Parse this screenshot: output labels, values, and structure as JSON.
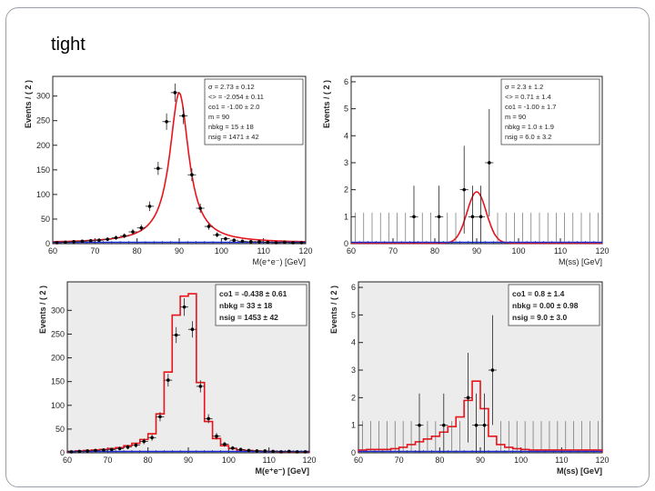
{
  "slide": {
    "title": "tight"
  },
  "chart_data": [
    {
      "type": "scatter",
      "panel": "top-left",
      "xlabel": "M(e⁺e⁻) [GeV]",
      "ylabel": "Events / ( 2 )",
      "xlim": [
        60,
        120
      ],
      "ylim": [
        0,
        340
      ],
      "xticks": [
        "60",
        "70",
        "80",
        "90",
        "100",
        "110",
        "120"
      ],
      "yticks": [
        "0",
        "50",
        "100",
        "150",
        "200",
        "250",
        "300"
      ],
      "yticks_v": [
        0,
        50,
        100,
        150,
        200,
        250,
        300
      ],
      "fit": {
        "type": "breit-wigner",
        "mean": 90,
        "gamma": 2.73,
        "peak": 305,
        "bkg": 1.5
      },
      "series": [
        {
          "name": "data",
          "x": [
            61,
            63,
            65,
            67,
            69,
            71,
            73,
            75,
            77,
            79,
            81,
            83,
            85,
            87,
            89,
            91,
            93,
            95,
            97,
            99,
            101,
            103,
            105,
            107,
            109,
            111,
            113,
            115,
            117,
            119
          ],
          "values": [
            2,
            3,
            4,
            5,
            6,
            7,
            9,
            12,
            16,
            24,
            32,
            76,
            153,
            248,
            307,
            260,
            140,
            72,
            35,
            18,
            10,
            7,
            5,
            4,
            4,
            3,
            2,
            3,
            2,
            2
          ]
        }
      ],
      "stats": [
        "σ = 2.73 ± 0.12",
        "<> = -2.054 ± 0.11",
        "co1 = -1.00 ± 2.0",
        "m = 90",
        "nbkg = 15 ± 18",
        "nsig = 1471 ± 42"
      ],
      "style": "curve"
    },
    {
      "type": "scatter",
      "panel": "top-right",
      "xlabel": "M(ss) [GeV]",
      "ylabel": "Events / ( 2 )",
      "xlim": [
        60,
        120
      ],
      "ylim": [
        0,
        6.2
      ],
      "xticks": [
        "60",
        "70",
        "80",
        "90",
        "100",
        "110",
        "120"
      ],
      "yticks": [
        "0",
        "1",
        "2",
        "3",
        "4",
        "5",
        "6"
      ],
      "yticks_v": [
        0,
        1,
        2,
        3,
        4,
        5,
        6
      ],
      "fit": {
        "type": "gauss",
        "mean": 90,
        "sigma": 2.3,
        "peak": 1.9,
        "bkg": 0.02
      },
      "series": [
        {
          "name": "data",
          "x": [
            75,
            81,
            87,
            89,
            91,
            93
          ],
          "values": [
            1,
            1,
            2,
            1,
            1,
            3
          ]
        }
      ],
      "stats": [
        "σ = 2.3 ± 1.2",
        "<> = 0.71 ± 1.4",
        "co1 = -1.00 ± 1.7",
        "m = 90",
        "nbkg = 1.0 ± 1.9",
        "nsig = 6.0 ± 3.2"
      ],
      "style": "curve"
    },
    {
      "type": "bar",
      "panel": "bottom-left",
      "xlabel": "M(e⁺e⁻) [GeV]",
      "ylabel": "Events / ( 2 )",
      "xlim": [
        60,
        120
      ],
      "ylim": [
        0,
        360
      ],
      "xticks": [
        "60",
        "70",
        "80",
        "90",
        "100",
        "110",
        "120"
      ],
      "yticks": [
        "0",
        "50",
        "100",
        "150",
        "200",
        "250",
        "300"
      ],
      "yticks_v": [
        0,
        50,
        100,
        150,
        200,
        250,
        300
      ],
      "bins_x": [
        61,
        63,
        65,
        67,
        69,
        71,
        73,
        75,
        77,
        79,
        81,
        83,
        85,
        87,
        89,
        91,
        93,
        95,
        97,
        99,
        101,
        103,
        105,
        107,
        109,
        111,
        113,
        115,
        117,
        119
      ],
      "hist": [
        3,
        4,
        5,
        6,
        7,
        9,
        11,
        15,
        20,
        28,
        40,
        82,
        170,
        290,
        330,
        335,
        148,
        66,
        30,
        15,
        9,
        6,
        5,
        4,
        3,
        3,
        2,
        2,
        2,
        2
      ],
      "series": [
        {
          "name": "data",
          "x": [
            61,
            63,
            65,
            67,
            69,
            71,
            73,
            75,
            77,
            79,
            81,
            83,
            85,
            87,
            89,
            91,
            93,
            95,
            97,
            99,
            101,
            103,
            105,
            107,
            109,
            111,
            113,
            115,
            117,
            119
          ],
          "values": [
            2,
            3,
            4,
            5,
            6,
            7,
            9,
            12,
            16,
            24,
            32,
            76,
            153,
            248,
            307,
            260,
            140,
            72,
            35,
            18,
            10,
            7,
            5,
            4,
            4,
            3,
            2,
            3,
            2,
            2
          ]
        }
      ],
      "stats": [
        "co1 = -0.438 ± 0.61",
        "nbkg = 33 ± 18",
        "nsig = 1453 ± 42"
      ],
      "style": "hist"
    },
    {
      "type": "bar",
      "panel": "bottom-right",
      "xlabel": "M(ss) [GeV]",
      "ylabel": "Events / ( 2 )",
      "xlim": [
        60,
        120
      ],
      "ylim": [
        0,
        6.2
      ],
      "xticks": [
        "60",
        "70",
        "80",
        "90",
        "100",
        "110",
        "120"
      ],
      "yticks": [
        "0",
        "1",
        "2",
        "3",
        "4",
        "5",
        "6"
      ],
      "yticks_v": [
        0,
        1,
        2,
        3,
        4,
        5,
        6
      ],
      "bins_x": [
        61,
        63,
        65,
        67,
        69,
        71,
        73,
        75,
        77,
        79,
        81,
        83,
        85,
        87,
        89,
        91,
        93,
        95,
        97,
        99,
        101,
        103,
        105,
        107,
        109,
        111,
        113,
        115,
        117,
        119
      ],
      "hist": [
        0.1,
        0.12,
        0.12,
        0.12,
        0.15,
        0.2,
        0.3,
        0.4,
        0.5,
        0.6,
        0.75,
        0.95,
        1.3,
        1.9,
        2.6,
        1.6,
        0.6,
        0.3,
        0.2,
        0.15,
        0.12,
        0.1,
        0.1,
        0.1,
        0.1,
        0.1,
        0.1,
        0.1,
        0.1,
        0.1
      ],
      "series": [
        {
          "name": "data",
          "x": [
            75,
            81,
            87,
            89,
            91,
            93
          ],
          "values": [
            1,
            1,
            2,
            1,
            1,
            3
          ]
        }
      ],
      "stats": [
        "co1 = 0.8 ± 1.4",
        "nbkg = 0.00 ± 0.98",
        "nsig = 9.0 ± 3.0"
      ],
      "style": "hist"
    }
  ]
}
